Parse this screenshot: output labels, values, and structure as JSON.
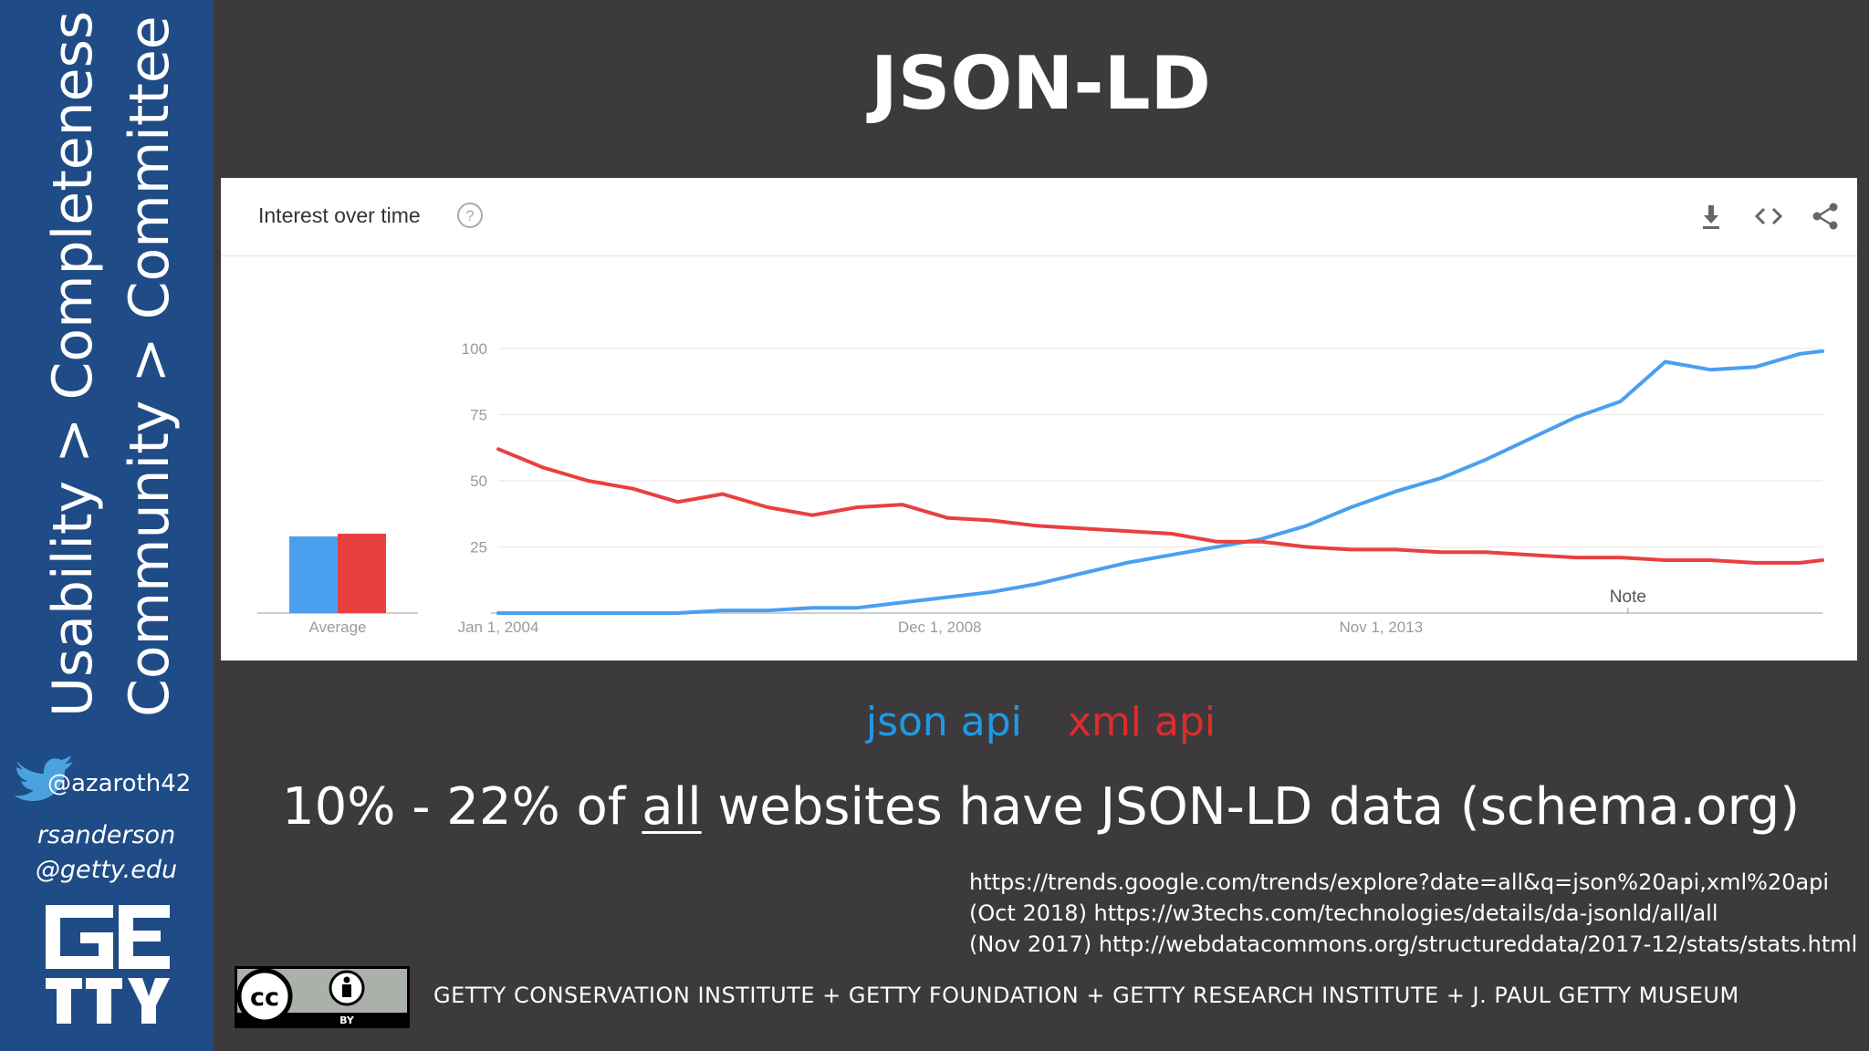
{
  "sidebar": {
    "line1": "Usability > Completeness",
    "line2": "Community > Committee",
    "twitter_handle": "@azaroth42",
    "email_line1": "rsanderson",
    "email_line2": "@getty.edu",
    "logo_icon": "getty-logo"
  },
  "slide": {
    "title": "JSON-LD"
  },
  "panel": {
    "title": "Interest over time",
    "help_icon": "help-icon",
    "actions": [
      "download-icon",
      "embed-icon",
      "share-icon"
    ]
  },
  "legend": {
    "json": "json api",
    "xml": "xml api"
  },
  "headline": {
    "pre": "10% - 22% of ",
    "underlined": "all",
    "post": " websites have JSON-LD data (schema.org)"
  },
  "sources": [
    "https://trends.google.com/trends/explore?date=all&q=json%20api,xml%20api",
    "(Oct 2018) https://w3techs.com/technologies/details/da-jsonld/all/all",
    "(Nov 2017) http://webdatacommons.org/structureddata/2017-12/stats/stats.html"
  ],
  "footer": {
    "text": "GETTY CONSERVATION INSTITUTE + GETTY FOUNDATION + GETTY RESEARCH INSTITUTE + J. PAUL GETTY MUSEUM",
    "license_badge": "cc-by-badge",
    "license_label": "BY"
  },
  "colors": {
    "json": "#4a9ff0",
    "xml": "#e84040",
    "sidebar": "#1f4b87",
    "background": "#3d3a3d"
  },
  "chart_data": {
    "type": "line",
    "title": "Interest over time",
    "ylim": [
      0,
      100
    ],
    "yticks": [
      25,
      50,
      75,
      100
    ],
    "xlim": [
      "2004-01",
      "2018-10"
    ],
    "xtick_labels": [
      {
        "label": "Jan 1, 2004",
        "at": "2004-01"
      },
      {
        "label": "Dec 1, 2008",
        "at": "2008-12"
      },
      {
        "label": "Nov 1, 2013",
        "at": "2013-11"
      }
    ],
    "annotation": {
      "label": "Note",
      "at": "2016-08"
    },
    "average": {
      "label": "Average",
      "values": [
        {
          "series": "json api",
          "value": 29
        },
        {
          "series": "xml api",
          "value": 30
        }
      ]
    },
    "series": [
      {
        "name": "json api",
        "color": "#4a9ff0",
        "x": [
          "2004-01",
          "2004-07",
          "2005-01",
          "2005-07",
          "2006-01",
          "2006-07",
          "2007-01",
          "2007-07",
          "2008-01",
          "2008-07",
          "2009-01",
          "2009-07",
          "2010-01",
          "2010-07",
          "2011-01",
          "2011-07",
          "2012-01",
          "2012-07",
          "2013-01",
          "2013-07",
          "2014-01",
          "2014-07",
          "2015-01",
          "2015-07",
          "2016-01",
          "2016-07",
          "2017-01",
          "2017-07",
          "2018-01",
          "2018-07",
          "2018-10"
        ],
        "values": [
          0,
          0,
          0,
          0,
          0,
          1,
          1,
          2,
          2,
          4,
          6,
          8,
          11,
          15,
          19,
          22,
          25,
          28,
          33,
          40,
          46,
          51,
          58,
          66,
          74,
          80,
          95,
          92,
          93,
          98,
          99
        ]
      },
      {
        "name": "xml api",
        "color": "#e84040",
        "x": [
          "2004-01",
          "2004-07",
          "2005-01",
          "2005-07",
          "2006-01",
          "2006-07",
          "2007-01",
          "2007-07",
          "2008-01",
          "2008-07",
          "2009-01",
          "2009-07",
          "2010-01",
          "2010-07",
          "2011-01",
          "2011-07",
          "2012-01",
          "2012-07",
          "2013-01",
          "2013-07",
          "2014-01",
          "2014-07",
          "2015-01",
          "2015-07",
          "2016-01",
          "2016-07",
          "2017-01",
          "2017-07",
          "2018-01",
          "2018-07",
          "2018-10"
        ],
        "values": [
          62,
          55,
          50,
          47,
          42,
          45,
          40,
          37,
          40,
          41,
          36,
          35,
          33,
          32,
          31,
          30,
          27,
          27,
          25,
          24,
          24,
          23,
          23,
          22,
          21,
          21,
          20,
          20,
          19,
          19,
          20
        ]
      }
    ]
  }
}
